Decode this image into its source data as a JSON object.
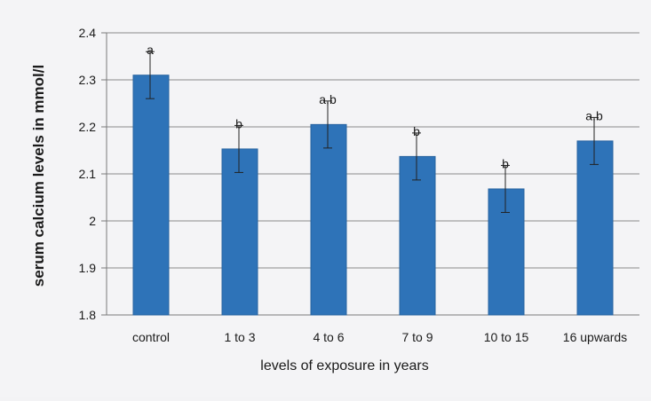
{
  "chart_data": {
    "type": "bar",
    "title": "",
    "xlabel": "levels of exposure in years",
    "ylabel": "serum calcium levels in mmol/l",
    "categories": [
      "control",
      "1 to 3",
      "4 to 6",
      "7 to 9",
      "10 to 15",
      "16 upwards"
    ],
    "values": [
      2.31,
      2.153,
      2.205,
      2.137,
      2.068,
      2.17
    ],
    "error": [
      0.05,
      0.05,
      0.05,
      0.05,
      0.05,
      0.05
    ],
    "significance_labels": [
      "a",
      "b",
      "a,b",
      "b",
      "b",
      "a,b"
    ],
    "ylim": [
      1.8,
      2.4
    ],
    "yticks": [
      1.8,
      1.9,
      2,
      2.1,
      2.2,
      2.3,
      2.4
    ],
    "ytick_labels": [
      "1.8",
      "1.9",
      "2",
      "2.1",
      "2.2",
      "2.3",
      "2.4"
    ],
    "grid": true,
    "legend": "none",
    "colors": {
      "bar": "#2e73b8",
      "bar_edge": "#2763a0",
      "grid": "#8a8a8a",
      "axis": "#7a7a7a"
    }
  }
}
